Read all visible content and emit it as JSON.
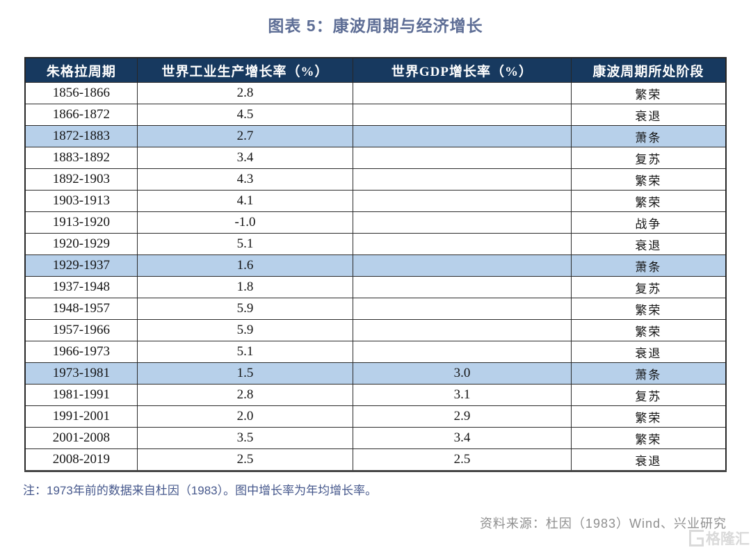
{
  "title": "图表 5：康波周期与经济增长",
  "chart_data": {
    "type": "table",
    "title": "图表 5：康波周期与经济增长",
    "columns": [
      "朱格拉周期",
      "世界工业生产增长率（%）",
      "世界GDP增长率（%）",
      "康波周期所处阶段"
    ],
    "rows": [
      [
        "1856-1866",
        "2.8",
        "",
        "繁荣"
      ],
      [
        "1866-1872",
        "4.5",
        "",
        "衰退"
      ],
      [
        "1872-1883",
        "2.7",
        "",
        "萧条"
      ],
      [
        "1883-1892",
        "3.4",
        "",
        "复苏"
      ],
      [
        "1892-1903",
        "4.3",
        "",
        "繁荣"
      ],
      [
        "1903-1913",
        "4.1",
        "",
        "繁荣"
      ],
      [
        "1913-1920",
        "-1.0",
        "",
        "战争"
      ],
      [
        "1920-1929",
        "5.1",
        "",
        "衰退"
      ],
      [
        "1929-1937",
        "1.6",
        "",
        "萧条"
      ],
      [
        "1937-1948",
        "1.8",
        "",
        "复苏"
      ],
      [
        "1948-1957",
        "5.9",
        "",
        "繁荣"
      ],
      [
        "1957-1966",
        "5.9",
        "",
        "繁荣"
      ],
      [
        "1966-1973",
        "5.1",
        "",
        "衰退"
      ],
      [
        "1973-1981",
        "1.5",
        "3.0",
        "萧条"
      ],
      [
        "1981-1991",
        "2.8",
        "3.1",
        "复苏"
      ],
      [
        "1991-2001",
        "2.0",
        "2.9",
        "繁荣"
      ],
      [
        "2001-2008",
        "3.5",
        "3.4",
        "繁荣"
      ],
      [
        "2008-2019",
        "2.5",
        "2.5",
        "衰退"
      ]
    ],
    "highlighted_rows": [
      2,
      8,
      13
    ],
    "colors": {
      "header_bg": "#17395f",
      "header_text": "#ffffff",
      "highlight_row_bg": "#b7d0ea",
      "title_text": "#5d6d95",
      "footnote_text": "#46588c",
      "source_text": "#8f8f8f"
    }
  },
  "footnote": "注：1973年前的数据来自杜因（1983）。图中增长率为年均增长率。",
  "source": "资料来源：杜因（1983）Wind、兴业研究",
  "watermark": {
    "label": "格隆汇"
  }
}
